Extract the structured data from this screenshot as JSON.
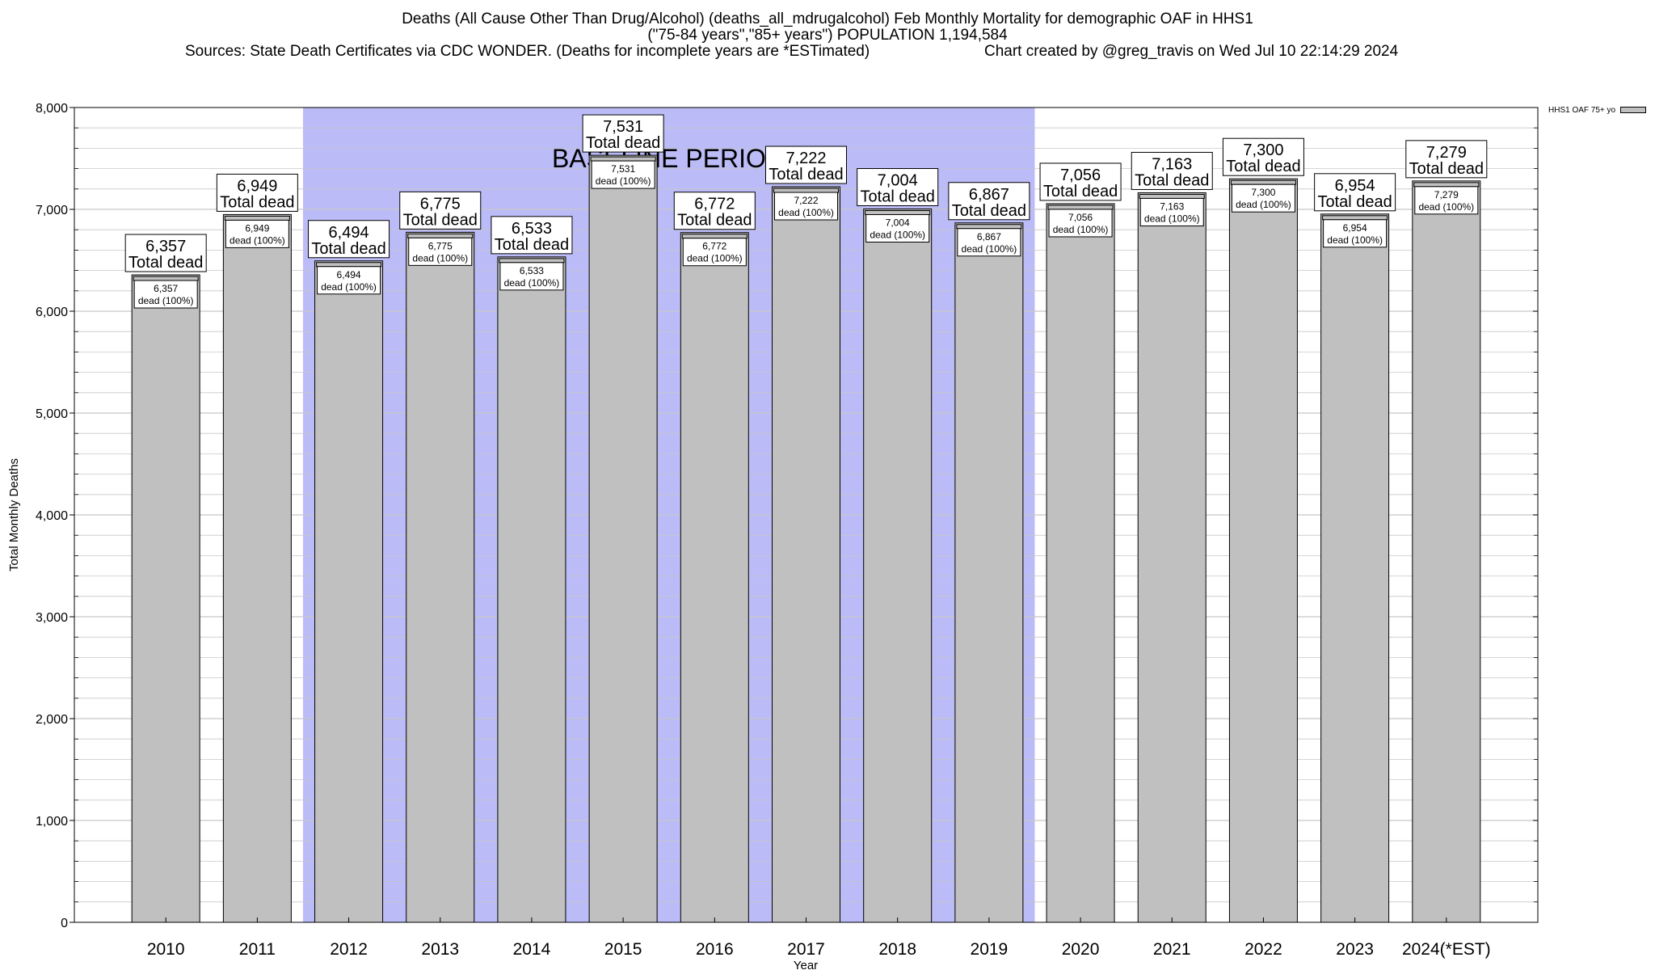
{
  "header": {
    "title_line1": "Deaths (All Cause Other Than Drug/Alcohol) (deaths_all_mdrugalcohol) Feb Monthly Mortality for demographic OAF in HHS1",
    "title_line2": "(\"75-84 years\",\"85+ years\") POPULATION 1,194,584",
    "sources": "Sources: State Death Certificates via CDC WONDER. (Deaths for incomplete years are *ESTimated)",
    "created": "Chart created by @greg_travis on Wed Jul 10 22:14:29 2024"
  },
  "legend": {
    "label": "HHS1 OAF 75+ yo"
  },
  "colors": {
    "bar": "#c0c0c0",
    "baseline_band": "#bbbbf7",
    "grid": "#c8c8c8",
    "axis": "#000000"
  },
  "chart_data": {
    "type": "bar",
    "xlabel": "Year",
    "ylabel": "Total Monthly Deaths",
    "ylim": [
      0,
      8000
    ],
    "yticks": [
      0,
      1000,
      2000,
      3000,
      4000,
      5000,
      6000,
      7000,
      8000
    ],
    "ytick_labels": [
      "0",
      "1,000",
      "2,000",
      "3,000",
      "4,000",
      "5,000",
      "6,000",
      "7,000",
      "8,000"
    ],
    "categories": [
      "2010",
      "2011",
      "2012",
      "2013",
      "2014",
      "2015",
      "2016",
      "2017",
      "2018",
      "2019",
      "2020",
      "2021",
      "2022",
      "2023",
      "2024(*EST)"
    ],
    "series": [
      {
        "name": "HHS1 OAF 75+ yo",
        "values": [
          6357,
          6949,
          6494,
          6775,
          6533,
          7531,
          6772,
          7222,
          7004,
          6867,
          7056,
          7163,
          7300,
          6954,
          7279
        ]
      }
    ],
    "value_labels": [
      "6,357",
      "6,949",
      "6,494",
      "6,775",
      "6,533",
      "7,531",
      "6,772",
      "7,222",
      "7,004",
      "6,867",
      "7,056",
      "7,163",
      "7,300",
      "6,954",
      "7,279"
    ],
    "total_suffix": "Total dead",
    "inner_suffix": "dead (100%)",
    "baseline": {
      "label": "BASELINE PERIOD",
      "start": "2012",
      "end": "2019"
    },
    "grid": true,
    "legend_position": "top-right"
  }
}
